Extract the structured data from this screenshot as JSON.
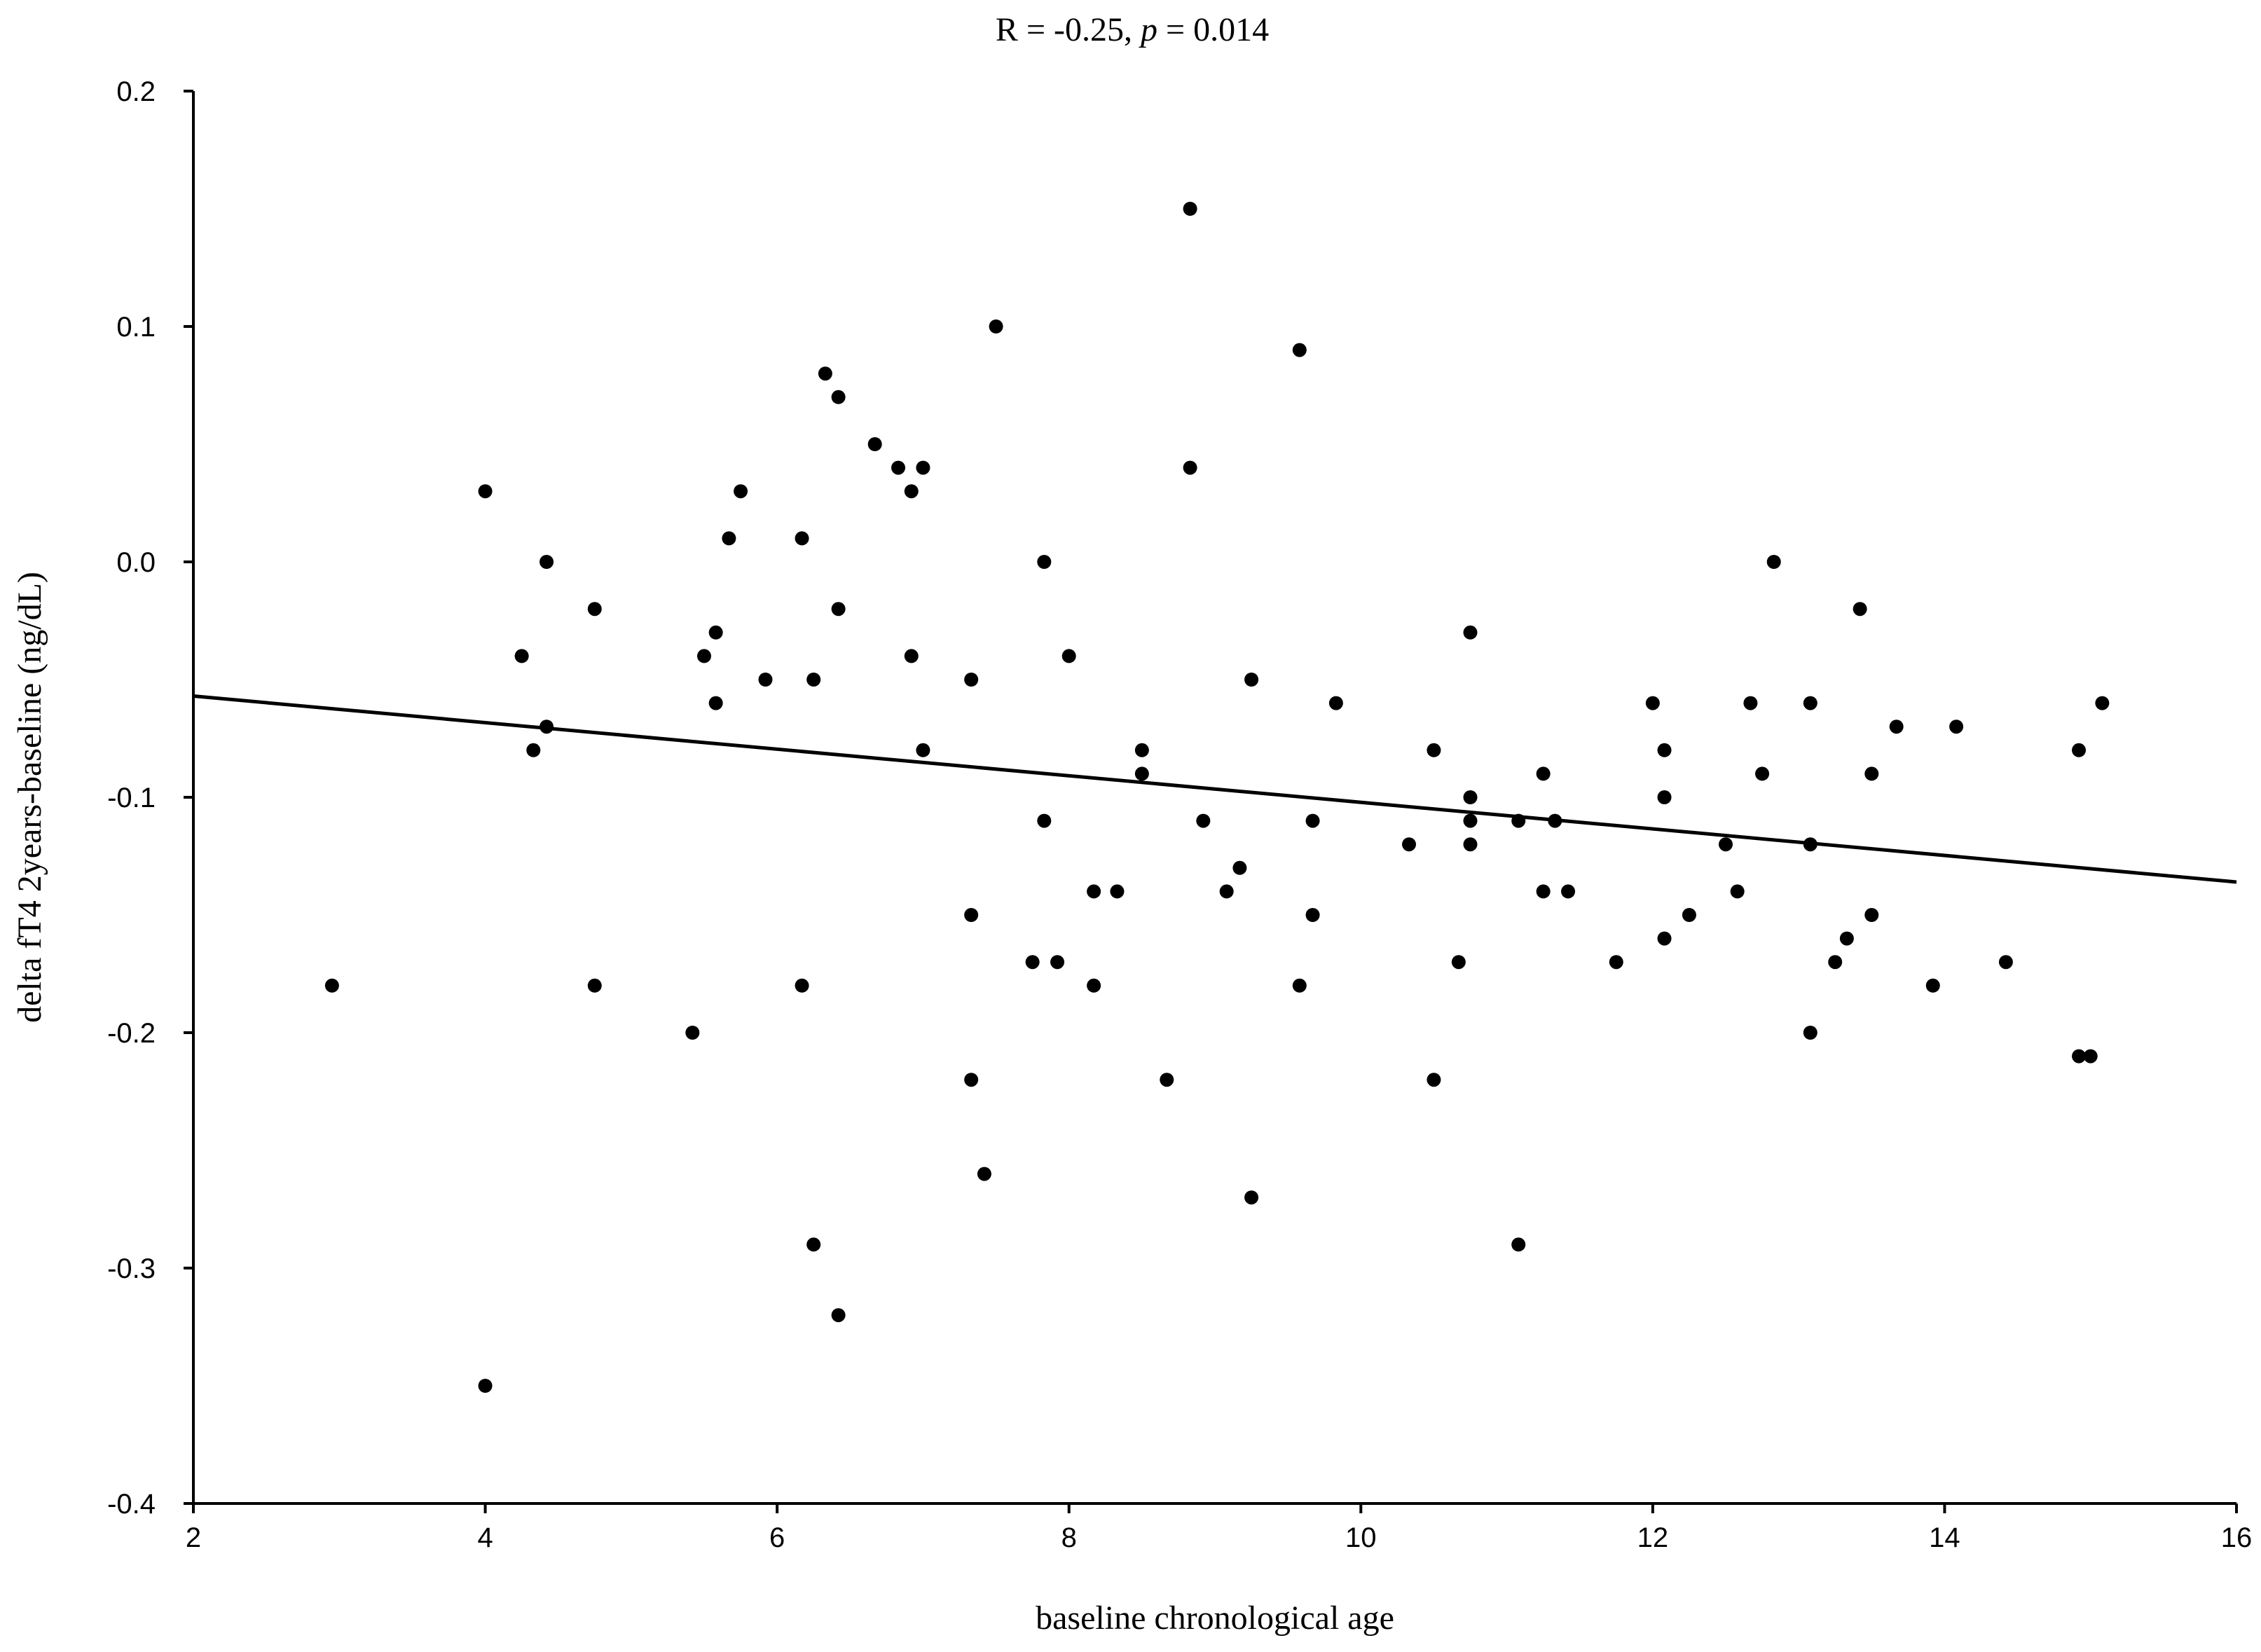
{
  "chart_data": {
    "type": "scatter",
    "title": "R = -0.25, p = 0.014",
    "title_prefix": "R = -0.25, ",
    "title_p": "p",
    "title_suffix": " = 0.014",
    "xlabel": "baseline chronological age",
    "ylabel": "delta fT4 2years-baseline (ng/dL)",
    "xlim": [
      2,
      16
    ],
    "ylim": [
      -0.4,
      0.2
    ],
    "xticks": [
      2,
      4,
      6,
      8,
      10,
      12,
      14,
      16
    ],
    "yticks": [
      0.2,
      0.1,
      0.0,
      -0.1,
      -0.2,
      -0.3,
      -0.4
    ],
    "xtick_labels": [
      "2",
      "4",
      "6",
      "8",
      "10",
      "12",
      "14",
      "16"
    ],
    "ytick_labels": [
      "0.2",
      "0.1",
      "0.0",
      "-0.1",
      "-0.2",
      "-0.3",
      "-0.4"
    ],
    "grid": false,
    "colors": {
      "points": "#000000",
      "line": "#000000"
    },
    "regression_line": {
      "x": [
        2,
        16
      ],
      "y": [
        -0.057,
        -0.136
      ]
    },
    "points": [
      [
        2.95,
        -0.18
      ],
      [
        4.0,
        0.03
      ],
      [
        4.0,
        -0.35
      ],
      [
        4.25,
        -0.04
      ],
      [
        4.33,
        -0.08
      ],
      [
        4.42,
        0.0
      ],
      [
        4.42,
        -0.07
      ],
      [
        4.75,
        -0.02
      ],
      [
        4.75,
        -0.18
      ],
      [
        5.42,
        -0.2
      ],
      [
        5.5,
        -0.04
      ],
      [
        5.58,
        -0.03
      ],
      [
        5.58,
        -0.06
      ],
      [
        5.67,
        0.01
      ],
      [
        5.75,
        0.03
      ],
      [
        5.92,
        -0.05
      ],
      [
        6.17,
        0.01
      ],
      [
        6.17,
        -0.18
      ],
      [
        6.25,
        -0.05
      ],
      [
        6.25,
        -0.29
      ],
      [
        6.33,
        0.08
      ],
      [
        6.42,
        0.07
      ],
      [
        6.42,
        -0.02
      ],
      [
        6.42,
        -0.32
      ],
      [
        6.67,
        0.05
      ],
      [
        6.83,
        0.04
      ],
      [
        6.92,
        0.03
      ],
      [
        6.92,
        -0.04
      ],
      [
        7.0,
        0.04
      ],
      [
        7.0,
        -0.08
      ],
      [
        7.33,
        -0.05
      ],
      [
        7.33,
        -0.15
      ],
      [
        7.33,
        -0.22
      ],
      [
        7.42,
        -0.26
      ],
      [
        7.5,
        0.1
      ],
      [
        7.75,
        -0.17
      ],
      [
        7.83,
        0.0
      ],
      [
        7.83,
        -0.11
      ],
      [
        7.92,
        -0.17
      ],
      [
        8.0,
        -0.04
      ],
      [
        8.17,
        -0.14
      ],
      [
        8.17,
        -0.18
      ],
      [
        8.33,
        -0.14
      ],
      [
        8.5,
        -0.08
      ],
      [
        8.5,
        -0.09
      ],
      [
        8.67,
        -0.22
      ],
      [
        8.83,
        0.15
      ],
      [
        8.83,
        0.04
      ],
      [
        8.92,
        -0.11
      ],
      [
        9.08,
        -0.14
      ],
      [
        9.17,
        -0.13
      ],
      [
        9.25,
        -0.05
      ],
      [
        9.25,
        -0.27
      ],
      [
        9.58,
        0.09
      ],
      [
        9.58,
        -0.18
      ],
      [
        9.67,
        -0.11
      ],
      [
        9.67,
        -0.15
      ],
      [
        9.83,
        -0.06
      ],
      [
        10.33,
        -0.12
      ],
      [
        10.5,
        -0.08
      ],
      [
        10.5,
        -0.22
      ],
      [
        10.67,
        -0.17
      ],
      [
        10.75,
        -0.03
      ],
      [
        10.75,
        -0.1
      ],
      [
        10.75,
        -0.11
      ],
      [
        10.75,
        -0.12
      ],
      [
        11.08,
        -0.11
      ],
      [
        11.08,
        -0.29
      ],
      [
        11.25,
        -0.09
      ],
      [
        11.25,
        -0.14
      ],
      [
        11.33,
        -0.11
      ],
      [
        11.42,
        -0.14
      ],
      [
        11.75,
        -0.17
      ],
      [
        12.0,
        -0.06
      ],
      [
        12.08,
        -0.08
      ],
      [
        12.08,
        -0.1
      ],
      [
        12.08,
        -0.16
      ],
      [
        12.25,
        -0.15
      ],
      [
        12.5,
        -0.12
      ],
      [
        12.58,
        -0.14
      ],
      [
        12.67,
        -0.06
      ],
      [
        12.75,
        -0.09
      ],
      [
        12.83,
        0.0
      ],
      [
        13.08,
        -0.06
      ],
      [
        13.08,
        -0.12
      ],
      [
        13.08,
        -0.2
      ],
      [
        13.25,
        -0.17
      ],
      [
        13.33,
        -0.16
      ],
      [
        13.42,
        -0.02
      ],
      [
        13.5,
        -0.09
      ],
      [
        13.5,
        -0.15
      ],
      [
        13.67,
        -0.07
      ],
      [
        13.92,
        -0.18
      ],
      [
        14.08,
        -0.07
      ],
      [
        14.42,
        -0.17
      ],
      [
        14.92,
        -0.08
      ],
      [
        14.92,
        -0.21
      ],
      [
        15.0,
        -0.21
      ],
      [
        15.08,
        -0.06
      ]
    ]
  }
}
